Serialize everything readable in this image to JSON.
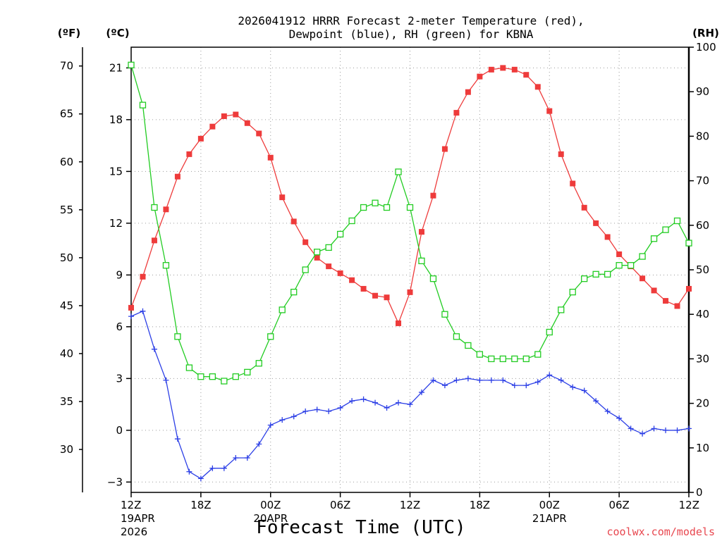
{
  "title_line1": "2026041912 HRRR Forecast 2-meter Temperature (red),",
  "title_line2": "Dewpoint (blue), RH (green) for KBNA",
  "credit": "coolwx.com/models",
  "colors": {
    "temperature": "#ee3b3b",
    "dewpoint": "#2c3fe6",
    "rh": "#22cc22",
    "grid": "#9a9a9a"
  },
  "chart_data": {
    "type": "line",
    "title": "2026041912 HRRR Forecast 2-meter Temperature (red), Dewpoint (blue), RH (green) for KBNA",
    "xlabel": "Forecast Time (UTC)",
    "x_unit": "hours from 2026-04-19 12Z",
    "xlim": [
      0,
      48
    ],
    "x_ticks": [
      {
        "x": 0,
        "label": "12Z",
        "sub1": "19APR",
        "sub2": "2026"
      },
      {
        "x": 6,
        "label": "18Z",
        "sub1": "",
        "sub2": ""
      },
      {
        "x": 12,
        "label": "00Z",
        "sub1": "20APR",
        "sub2": ""
      },
      {
        "x": 18,
        "label": "06Z",
        "sub1": "",
        "sub2": ""
      },
      {
        "x": 24,
        "label": "12Z",
        "sub1": "",
        "sub2": ""
      },
      {
        "x": 30,
        "label": "18Z",
        "sub1": "",
        "sub2": ""
      },
      {
        "x": 36,
        "label": "00Z",
        "sub1": "21APR",
        "sub2": ""
      },
      {
        "x": 42,
        "label": "06Z",
        "sub1": "",
        "sub2": ""
      },
      {
        "x": 48,
        "label": "12Z",
        "sub1": "",
        "sub2": ""
      }
    ],
    "y_celsius": {
      "unit_label": "(ºC)",
      "ylim": [
        -3.6,
        22.2
      ],
      "ticks": [
        -3,
        0,
        3,
        6,
        9,
        12,
        15,
        18,
        21
      ],
      "tick_labels": [
        "−3",
        "0",
        "3",
        "6",
        "9",
        "12",
        "15",
        "18",
        "21"
      ]
    },
    "y_fahrenheit": {
      "unit_label": "(ºF)",
      "ticks": [
        30,
        35,
        40,
        45,
        50,
        55,
        60,
        65,
        70
      ],
      "tick_labels": [
        "30",
        "35",
        "40",
        "45",
        "50",
        "55",
        "60",
        "65",
        "70"
      ]
    },
    "y_rh": {
      "unit_label": "(RH)",
      "ylim": [
        0,
        100
      ],
      "ticks": [
        0,
        10,
        20,
        30,
        40,
        50,
        60,
        70,
        80,
        90,
        100
      ],
      "tick_labels": [
        "0",
        "10",
        "20",
        "30",
        "40",
        "50",
        "60",
        "70",
        "80",
        "90",
        "100"
      ]
    },
    "grid": true,
    "series": [
      {
        "axis": "celsius",
        "marker": "filled-square",
        "x": [
          0,
          1,
          2,
          3,
          4,
          5,
          6,
          7,
          8,
          9,
          10,
          11,
          12,
          13,
          14,
          15,
          16,
          17,
          18,
          19,
          20,
          21,
          22,
          23,
          24,
          25,
          26,
          27,
          28,
          29,
          30,
          31,
          32,
          33,
          34,
          35,
          36,
          37,
          38,
          39,
          40,
          41,
          42,
          43,
          44,
          45,
          46,
          47,
          48
        ],
        "values": [
          7.1,
          8.9,
          11.0,
          12.8,
          14.7,
          16.0,
          16.9,
          17.6,
          18.2,
          18.3,
          17.8,
          17.2,
          15.8,
          13.5,
          12.1,
          10.9,
          10.0,
          9.5,
          9.1,
          8.7,
          8.2,
          7.8,
          7.7,
          6.2,
          8.0,
          11.5,
          13.6,
          16.3,
          18.4,
          19.6,
          20.5,
          20.9,
          21.0,
          20.9,
          20.6,
          19.9,
          18.5,
          16.0,
          14.3,
          12.9,
          12.0,
          11.2,
          10.2,
          9.5,
          8.8,
          8.1,
          7.5,
          7.2,
          8.2
        ]
      },
      {
        "axis": "celsius",
        "marker": "plus",
        "x": [
          0,
          1,
          2,
          3,
          4,
          5,
          6,
          7,
          8,
          9,
          10,
          11,
          12,
          13,
          14,
          15,
          16,
          17,
          18,
          19,
          20,
          21,
          22,
          23,
          24,
          25,
          26,
          27,
          28,
          29,
          30,
          31,
          32,
          33,
          34,
          35,
          36,
          37,
          38,
          39,
          40,
          41,
          42,
          43,
          44,
          45,
          46,
          47,
          48
        ],
        "values": [
          6.6,
          6.9,
          4.7,
          2.9,
          -0.5,
          -2.4,
          -2.8,
          -2.2,
          -2.2,
          -1.6,
          -1.6,
          -0.8,
          0.3,
          0.6,
          0.8,
          1.1,
          1.2,
          1.1,
          1.3,
          1.7,
          1.8,
          1.6,
          1.3,
          1.6,
          1.5,
          2.2,
          2.9,
          2.6,
          2.9,
          3.0,
          2.9,
          2.9,
          2.9,
          2.6,
          2.6,
          2.8,
          3.2,
          2.9,
          2.5,
          2.3,
          1.7,
          1.1,
          0.7,
          0.1,
          -0.2,
          0.1,
          0.0,
          0.0,
          0.1
        ]
      },
      {
        "axis": "rh",
        "marker": "open-square",
        "x": [
          0,
          1,
          2,
          3,
          4,
          5,
          6,
          7,
          8,
          9,
          10,
          11,
          12,
          13,
          14,
          15,
          16,
          17,
          18,
          19,
          20,
          21,
          22,
          23,
          24,
          25,
          26,
          27,
          28,
          29,
          30,
          31,
          32,
          33,
          34,
          35,
          36,
          37,
          38,
          39,
          40,
          41,
          42,
          43,
          44,
          45,
          46,
          47,
          48
        ],
        "values": [
          96,
          87,
          64,
          51,
          35,
          28,
          26,
          26,
          25,
          26,
          27,
          29,
          35,
          41,
          45,
          50,
          54,
          55,
          58,
          61,
          64,
          65,
          64,
          72,
          64,
          52,
          48,
          40,
          35,
          33,
          31,
          30,
          30,
          30,
          30,
          31,
          36,
          41,
          45,
          48,
          49,
          49,
          51,
          51,
          53,
          57,
          59,
          61,
          56
        ]
      }
    ]
  }
}
